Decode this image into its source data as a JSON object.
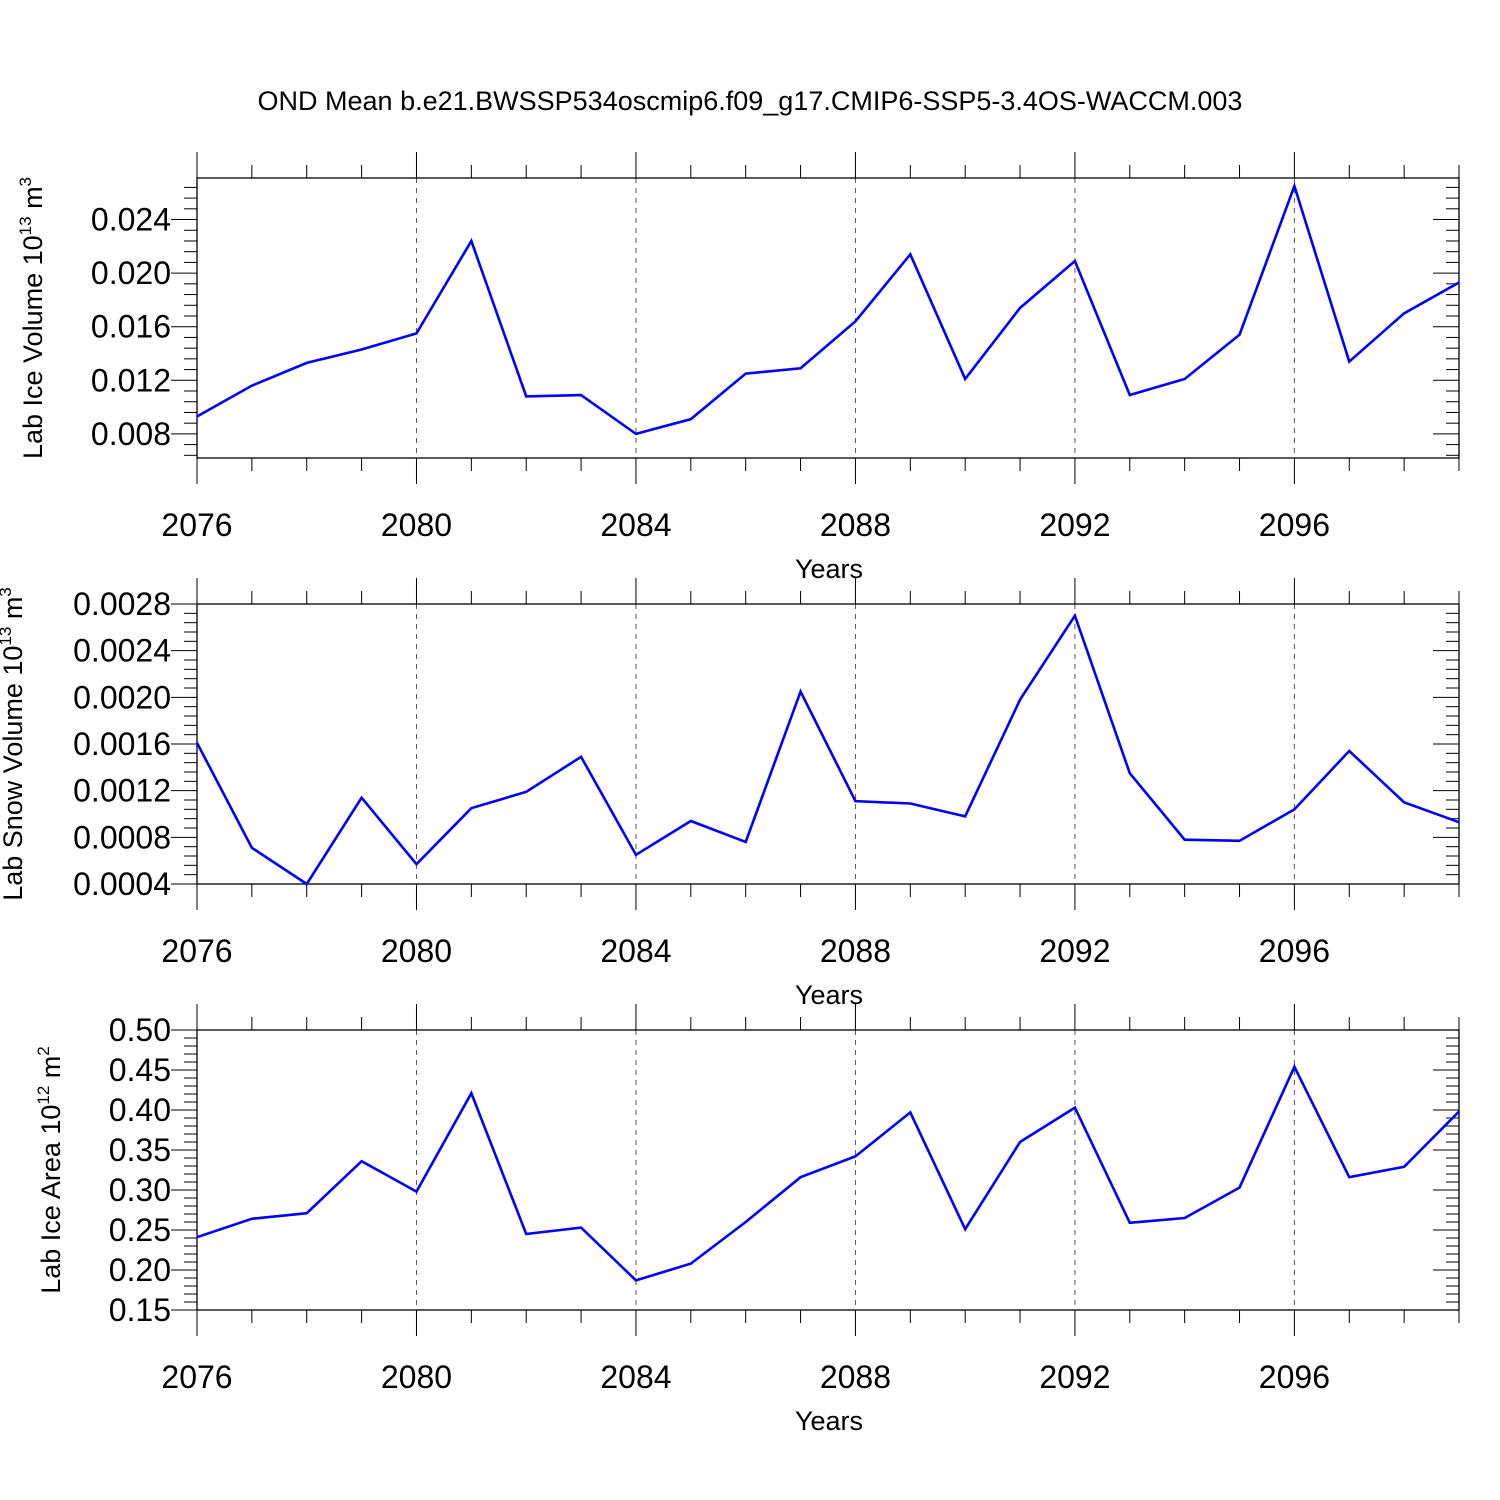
{
  "title": "OND Mean b.e21.BWSSP534oscmip6.f09_g17.CMIP6-SSP5-3.4OS-WACCM.003",
  "colors": {
    "line": "#0000ff",
    "axis": "#000000",
    "grid": "#555555"
  },
  "chart_data": [
    {
      "type": "line",
      "ylabel_main": "Lab Ice Volume 10",
      "ylabel_exp": "13",
      "ylabel_unit": " m",
      "ylabel_unit_exp": "3",
      "xlabel": "Years",
      "xlim": [
        2076,
        2099
      ],
      "ylim": [
        0.0062,
        0.0271
      ],
      "xticks": [
        2076,
        2080,
        2084,
        2088,
        2092,
        2096
      ],
      "xtick_labels": [
        "2076",
        "2080",
        "2084",
        "2088",
        "2092",
        "2096"
      ],
      "yticks": [
        0.008,
        0.012,
        0.016,
        0.02,
        0.024
      ],
      "ytick_labels": [
        "0.008",
        "0.012",
        "0.016",
        "0.020",
        "0.024"
      ],
      "x": [
        2076,
        2077,
        2078,
        2079,
        2080,
        2081,
        2082,
        2083,
        2084,
        2085,
        2086,
        2087,
        2088,
        2089,
        2090,
        2091,
        2092,
        2093,
        2094,
        2095,
        2096,
        2097,
        2098,
        2099
      ],
      "values": [
        0.0093,
        0.0116,
        0.0133,
        0.0143,
        0.0155,
        0.0224,
        0.0108,
        0.0109,
        0.008,
        0.0091,
        0.0125,
        0.0129,
        0.0164,
        0.0214,
        0.0121,
        0.0174,
        0.0209,
        0.0109,
        0.0121,
        0.0154,
        0.0265,
        0.0134,
        0.017,
        0.0193
      ]
    },
    {
      "type": "line",
      "ylabel_main": "Lab Snow Volume 10",
      "ylabel_exp": "13",
      "ylabel_unit": " m",
      "ylabel_unit_exp": "3",
      "xlabel": "Years",
      "xlim": [
        2076,
        2099
      ],
      "ylim": [
        0.0004,
        0.0028
      ],
      "xticks": [
        2076,
        2080,
        2084,
        2088,
        2092,
        2096
      ],
      "xtick_labels": [
        "2076",
        "2080",
        "2084",
        "2088",
        "2092",
        "2096"
      ],
      "yticks": [
        0.0004,
        0.0008,
        0.0012,
        0.0016,
        0.002,
        0.0024,
        0.0028
      ],
      "ytick_labels": [
        "0.0004",
        "0.0008",
        "0.0012",
        "0.0016",
        "0.0020",
        "0.0024",
        "0.0028"
      ],
      "x": [
        2076,
        2077,
        2078,
        2079,
        2080,
        2081,
        2082,
        2083,
        2084,
        2085,
        2086,
        2087,
        2088,
        2089,
        2090,
        2091,
        2092,
        2093,
        2094,
        2095,
        2096,
        2097,
        2098,
        2099
      ],
      "values": [
        0.00161,
        0.00071,
        0.0004,
        0.00114,
        0.00057,
        0.00105,
        0.00119,
        0.00149,
        0.00065,
        0.00094,
        0.00076,
        0.00205,
        0.00111,
        0.00109,
        0.00098,
        0.00198,
        0.0027,
        0.00135,
        0.00078,
        0.00077,
        0.00104,
        0.00154,
        0.0011,
        0.00093
      ]
    },
    {
      "type": "line",
      "ylabel_main": "Lab Ice Area 10",
      "ylabel_exp": "12",
      "ylabel_unit": " m",
      "ylabel_unit_exp": "2",
      "xlabel": "Years",
      "xlim": [
        2076,
        2099
      ],
      "ylim": [
        0.15,
        0.5
      ],
      "xticks": [
        2076,
        2080,
        2084,
        2088,
        2092,
        2096
      ],
      "xtick_labels": [
        "2076",
        "2080",
        "2084",
        "2088",
        "2092",
        "2096"
      ],
      "yticks": [
        0.15,
        0.2,
        0.25,
        0.3,
        0.35,
        0.4,
        0.45,
        0.5
      ],
      "ytick_labels": [
        "0.15",
        "0.20",
        "0.25",
        "0.30",
        "0.35",
        "0.40",
        "0.45",
        "0.50"
      ],
      "x": [
        2076,
        2077,
        2078,
        2079,
        2080,
        2081,
        2082,
        2083,
        2084,
        2085,
        2086,
        2087,
        2088,
        2089,
        2090,
        2091,
        2092,
        2093,
        2094,
        2095,
        2096,
        2097,
        2098,
        2099
      ],
      "values": [
        0.241,
        0.264,
        0.271,
        0.336,
        0.298,
        0.421,
        0.245,
        0.253,
        0.187,
        0.208,
        0.26,
        0.316,
        0.342,
        0.397,
        0.251,
        0.36,
        0.403,
        0.259,
        0.265,
        0.303,
        0.454,
        0.316,
        0.329,
        0.398
      ]
    }
  ]
}
